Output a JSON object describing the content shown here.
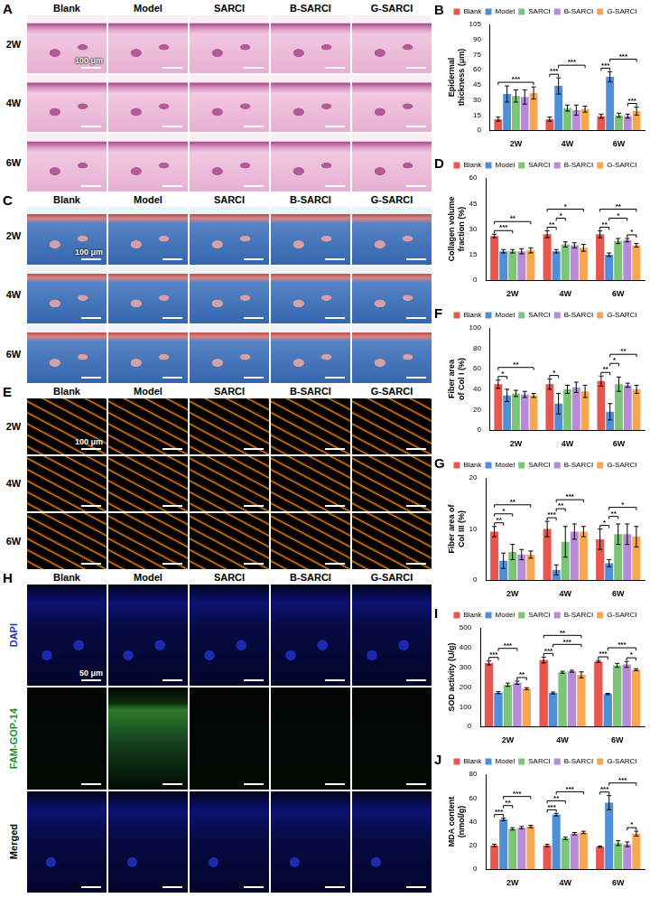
{
  "chart_data": [
    {
      "panel": "B",
      "type": "bar",
      "y_label": "Epidermal thickness (μm)",
      "categories": [
        "2W",
        "4W",
        "6W"
      ],
      "series": [
        {
          "name": "Blank",
          "color": "#e8574f",
          "values": [
            11,
            11,
            14
          ],
          "errors": [
            2,
            2,
            2
          ]
        },
        {
          "name": "Model",
          "color": "#4f8fd6",
          "values": [
            36,
            44,
            53
          ],
          "errors": [
            8,
            8,
            5
          ]
        },
        {
          "name": "SARCI",
          "color": "#7cc576",
          "values": [
            34,
            22,
            15
          ],
          "errors": [
            6,
            3,
            2
          ]
        },
        {
          "name": "B-SARCI",
          "color": "#b98ad8",
          "values": [
            33,
            20,
            14
          ],
          "errors": [
            7,
            5,
            2
          ]
        },
        {
          "name": "G-SARCI",
          "color": "#f7a750",
          "values": [
            37,
            21,
            19
          ],
          "errors": [
            6,
            3,
            4
          ]
        }
      ],
      "ylim": [
        0,
        105
      ],
      "yticks": [
        0,
        15,
        30,
        45,
        60,
        75,
        90,
        105
      ],
      "grid": false,
      "legend": "top",
      "annotations": [
        {
          "category": "2W",
          "from": "Blank",
          "to": "G-SARCI",
          "label": "***"
        },
        {
          "category": "4W",
          "from": "Blank",
          "to": "Model",
          "label": "***"
        },
        {
          "category": "4W",
          "from": "Model",
          "to": "G-SARCI",
          "label": "***"
        },
        {
          "category": "6W",
          "from": "Blank",
          "to": "Model",
          "label": "***"
        },
        {
          "category": "6W",
          "from": "B-SARCI",
          "to": "G-SARCI",
          "label": "***"
        },
        {
          "category": "6W",
          "from": "Model",
          "to": "G-SARCI",
          "label": "***"
        }
      ]
    },
    {
      "panel": "D",
      "type": "bar",
      "y_label": "Collagen volume fraction (%)",
      "categories": [
        "2W",
        "4W",
        "6W"
      ],
      "series": [
        {
          "name": "Blank",
          "color": "#e8574f",
          "values": [
            26,
            27,
            27
          ],
          "errors": [
            1,
            2,
            2
          ]
        },
        {
          "name": "Model",
          "color": "#4f8fd6",
          "values": [
            17,
            17,
            15
          ],
          "errors": [
            1,
            1,
            1
          ]
        },
        {
          "name": "SARCI",
          "color": "#7cc576",
          "values": [
            17,
            21,
            23
          ],
          "errors": [
            1,
            1.5,
            1.5
          ]
        },
        {
          "name": "B-SARCI",
          "color": "#b98ad8",
          "values": [
            17,
            20.5,
            23.5
          ],
          "errors": [
            1.5,
            1.5,
            1
          ]
        },
        {
          "name": "G-SARCI",
          "color": "#f7a750",
          "values": [
            17.5,
            19,
            20.5
          ],
          "errors": [
            1.5,
            2,
            1
          ]
        }
      ],
      "ylim": [
        0,
        60
      ],
      "yticks": [
        0,
        15,
        30,
        45,
        60
      ],
      "grid": false,
      "legend": "top",
      "annotations": [
        {
          "category": "2W",
          "from": "Blank",
          "to": "SARCI",
          "label": "***"
        },
        {
          "category": "2W",
          "from": "Blank",
          "to": "G-SARCI",
          "label": "**"
        },
        {
          "category": "4W",
          "from": "Blank",
          "to": "Model",
          "label": "**"
        },
        {
          "category": "4W",
          "from": "Model",
          "to": "SARCI",
          "label": "*"
        },
        {
          "category": "4W",
          "from": "Blank",
          "to": "G-SARCI",
          "label": "*"
        },
        {
          "category": "6W",
          "from": "Blank",
          "to": "Model",
          "label": "**"
        },
        {
          "category": "6W",
          "from": "B-SARCI",
          "to": "G-SARCI",
          "label": "*"
        },
        {
          "category": "6W",
          "from": "Model",
          "to": "B-SARCI",
          "label": "*"
        },
        {
          "category": "6W",
          "from": "Blank",
          "to": "G-SARCI",
          "label": "**"
        }
      ]
    },
    {
      "panel": "F",
      "type": "bar",
      "y_label": "Fiber area of Col I (%)",
      "categories": [
        "2W",
        "4W",
        "6W"
      ],
      "series": [
        {
          "name": "Blank",
          "color": "#e8574f",
          "values": [
            45,
            45,
            48
          ],
          "errors": [
            4,
            5,
            5
          ]
        },
        {
          "name": "Model",
          "color": "#4f8fd6",
          "values": [
            34,
            26,
            18
          ],
          "errors": [
            6,
            10,
            8
          ]
        },
        {
          "name": "SARCI",
          "color": "#7cc576",
          "values": [
            36,
            40,
            45
          ],
          "errors": [
            3,
            4,
            7
          ]
        },
        {
          "name": "B-SARCI",
          "color": "#b98ad8",
          "values": [
            35,
            42,
            44
          ],
          "errors": [
            3,
            5,
            2
          ]
        },
        {
          "name": "G-SARCI",
          "color": "#f7a750",
          "values": [
            34,
            38,
            40
          ],
          "errors": [
            2,
            6,
            4
          ]
        }
      ],
      "ylim": [
        0,
        100
      ],
      "yticks": [
        0,
        20,
        40,
        60,
        80,
        100
      ],
      "grid": false,
      "legend": "top",
      "annotations": [
        {
          "category": "2W",
          "from": "Blank",
          "to": "Model",
          "label": "*"
        },
        {
          "category": "2W",
          "from": "Blank",
          "to": "G-SARCI",
          "label": "**"
        },
        {
          "category": "4W",
          "from": "Blank",
          "to": "Model",
          "label": "*"
        },
        {
          "category": "6W",
          "from": "Blank",
          "to": "Model",
          "label": "**"
        },
        {
          "category": "6W",
          "from": "Model",
          "to": "SARCI",
          "label": "*"
        },
        {
          "category": "6W",
          "from": "Model",
          "to": "G-SARCI",
          "label": "**"
        }
      ]
    },
    {
      "panel": "G",
      "type": "bar",
      "y_label": "Fiber area of Col III (%)",
      "categories": [
        "2W",
        "4W",
        "6W"
      ],
      "series": [
        {
          "name": "Blank",
          "color": "#e8574f",
          "values": [
            9.5,
            10,
            8
          ],
          "errors": [
            1,
            1.5,
            2
          ]
        },
        {
          "name": "Model",
          "color": "#4f8fd6",
          "values": [
            3.8,
            2,
            3.3
          ],
          "errors": [
            1.5,
            1,
            0.7
          ]
        },
        {
          "name": "SARCI",
          "color": "#7cc576",
          "values": [
            5.5,
            7.5,
            9
          ],
          "errors": [
            1.5,
            3,
            2
          ]
        },
        {
          "name": "B-SARCI",
          "color": "#b98ad8",
          "values": [
            5,
            9.5,
            9
          ],
          "errors": [
            1,
            1.5,
            2
          ]
        },
        {
          "name": "G-SARCI",
          "color": "#f7a750",
          "values": [
            5,
            9.5,
            8.5
          ],
          "errors": [
            0.7,
            1,
            2
          ]
        }
      ],
      "ylim": [
        0,
        20
      ],
      "yticks": [
        0,
        10,
        20
      ],
      "grid": false,
      "legend": "top",
      "annotations": [
        {
          "category": "2W",
          "from": "Blank",
          "to": "Model",
          "label": "**"
        },
        {
          "category": "2W",
          "from": "Blank",
          "to": "SARCI",
          "label": "*"
        },
        {
          "category": "2W",
          "from": "Blank",
          "to": "G-SARCI",
          "label": "**"
        },
        {
          "category": "4W",
          "from": "Blank",
          "to": "Model",
          "label": "***"
        },
        {
          "category": "4W",
          "from": "Model",
          "to": "SARCI",
          "label": "**"
        },
        {
          "category": "4W",
          "from": "Model",
          "to": "G-SARCI",
          "label": "***"
        },
        {
          "category": "6W",
          "from": "Blank",
          "to": "Model",
          "label": "*"
        },
        {
          "category": "6W",
          "from": "Model",
          "to": "SARCI",
          "label": "**"
        },
        {
          "category": "6W",
          "from": "Model",
          "to": "G-SARCI",
          "label": "*"
        }
      ]
    },
    {
      "panel": "I",
      "type": "bar",
      "y_label": "SOD activity (U/g)",
      "categories": [
        "2W",
        "4W",
        "6W"
      ],
      "series": [
        {
          "name": "Blank",
          "color": "#e8574f",
          "values": [
            322,
            337,
            330
          ],
          "errors": [
            10,
            15,
            5
          ]
        },
        {
          "name": "Model",
          "color": "#4f8fd6",
          "values": [
            172,
            170,
            165
          ],
          "errors": [
            5,
            5,
            3
          ]
        },
        {
          "name": "SARCI",
          "color": "#7cc576",
          "values": [
            212,
            275,
            310
          ],
          "errors": [
            8,
            5,
            10
          ]
        },
        {
          "name": "B-SARCI",
          "color": "#b98ad8",
          "values": [
            222,
            280,
            315
          ],
          "errors": [
            8,
            5,
            15
          ]
        },
        {
          "name": "G-SARCI",
          "color": "#f7a750",
          "values": [
            192,
            262,
            288
          ],
          "errors": [
            5,
            15,
            5
          ]
        }
      ],
      "ylim": [
        0,
        500
      ],
      "yticks": [
        0,
        100,
        200,
        300,
        400,
        500
      ],
      "grid": false,
      "legend": "top",
      "annotations": [
        {
          "category": "2W",
          "from": "Blank",
          "to": "Model",
          "label": "***"
        },
        {
          "category": "2W",
          "from": "B-SARCI",
          "to": "G-SARCI",
          "label": "**"
        },
        {
          "category": "2W",
          "from": "Model",
          "to": "B-SARCI",
          "label": "***"
        },
        {
          "category": "4W",
          "from": "Blank",
          "to": "Model",
          "label": "***"
        },
        {
          "category": "4W",
          "from": "Model",
          "to": "G-SARCI",
          "label": "***"
        },
        {
          "category": "4W",
          "from": "Blank",
          "to": "G-SARCI",
          "label": "**"
        },
        {
          "category": "6W",
          "from": "Blank",
          "to": "Model",
          "label": "***"
        },
        {
          "category": "6W",
          "from": "B-SARCI",
          "to": "G-SARCI",
          "label": "*"
        },
        {
          "category": "6W",
          "from": "Model",
          "to": "G-SARCI",
          "label": "***"
        }
      ]
    },
    {
      "panel": "J",
      "type": "bar",
      "y_label": "MDA content (nmol/g)",
      "categories": [
        "2W",
        "4W",
        "6W"
      ],
      "series": [
        {
          "name": "Blank",
          "color": "#e8574f",
          "values": [
            20,
            20,
            19
          ],
          "errors": [
            1,
            1,
            0.5
          ]
        },
        {
          "name": "Model",
          "color": "#4f8fd6",
          "values": [
            42,
            46,
            56
          ],
          "errors": [
            1,
            1,
            6
          ]
        },
        {
          "name": "SARCI",
          "color": "#7cc576",
          "values": [
            34,
            26,
            22
          ],
          "errors": [
            1,
            1,
            2
          ]
        },
        {
          "name": "B-SARCI",
          "color": "#b98ad8",
          "values": [
            35,
            30,
            21
          ],
          "errors": [
            1,
            1,
            2
          ]
        },
        {
          "name": "G-SARCI",
          "color": "#f7a750",
          "values": [
            36,
            31,
            30
          ],
          "errors": [
            1,
            1,
            2
          ]
        }
      ],
      "ylim": [
        0,
        80
      ],
      "yticks": [
        0,
        20,
        40,
        60,
        80
      ],
      "grid": false,
      "legend": "top",
      "annotations": [
        {
          "category": "2W",
          "from": "Blank",
          "to": "Model",
          "label": "***"
        },
        {
          "category": "2W",
          "from": "Model",
          "to": "SARCI",
          "label": "**"
        },
        {
          "category": "2W",
          "from": "Model",
          "to": "G-SARCI",
          "label": "***"
        },
        {
          "category": "4W",
          "from": "Blank",
          "to": "Model",
          "label": "***"
        },
        {
          "category": "4W",
          "from": "Blank",
          "to": "SARCI",
          "label": "**"
        },
        {
          "category": "4W",
          "from": "Model",
          "to": "G-SARCI",
          "label": "***"
        },
        {
          "category": "6W",
          "from": "Blank",
          "to": "Model",
          "label": "***"
        },
        {
          "category": "6W",
          "from": "B-SARCI",
          "to": "G-SARCI",
          "label": "*"
        },
        {
          "category": "6W",
          "from": "Model",
          "to": "G-SARCI",
          "label": "***"
        }
      ]
    }
  ],
  "image_panels": [
    {
      "panel": "A",
      "columns": [
        "Blank",
        "Model",
        "SARCI",
        "B-SARCI",
        "G-SARCI"
      ],
      "rows": [
        "2W",
        "4W",
        "6W"
      ],
      "scale_bar": "100 μm"
    },
    {
      "panel": "C",
      "columns": [
        "Blank",
        "Model",
        "SARCI",
        "B-SARCI",
        "G-SARCI"
      ],
      "rows": [
        "2W",
        "4W",
        "6W"
      ],
      "scale_bar": "100 μm"
    },
    {
      "panel": "E",
      "columns": [
        "Blank",
        "Model",
        "SARCI",
        "B-SARCI",
        "G-SARCI"
      ],
      "rows": [
        "2W",
        "4W",
        "6W"
      ],
      "scale_bar": "100 μm"
    },
    {
      "panel": "H",
      "columns": [
        "Blank",
        "Model",
        "SARCI",
        "B-SARCI",
        "G-SARCI"
      ],
      "rows": [
        "DAPI",
        "FAM-GOP-14",
        "Merged"
      ],
      "colors": [
        "#2233cc",
        "#1f8f1f",
        "#000000"
      ],
      "scale_bar": "50 μm"
    }
  ]
}
